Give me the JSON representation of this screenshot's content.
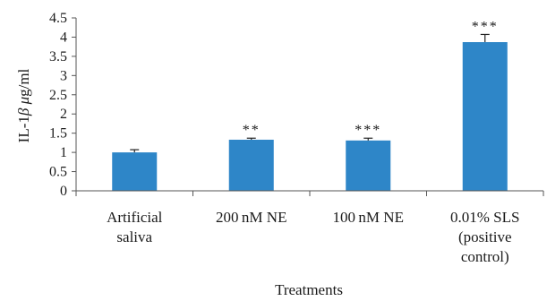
{
  "chart_data": {
    "type": "bar",
    "categories": [
      "Artificial saliva",
      "200 nM NE",
      "100 nM NE",
      "0.01% SLS (positive control)"
    ],
    "category_label_lines": [
      [
        "Artificial",
        "saliva"
      ],
      [
        "200 nM NE"
      ],
      [
        "100 nM NE"
      ],
      [
        "0.01% SLS",
        "(positive",
        "control)"
      ]
    ],
    "values": [
      1.0,
      1.33,
      1.31,
      3.87
    ],
    "errors": [
      0.07,
      0.04,
      0.06,
      0.2
    ],
    "significance": [
      "",
      "**",
      "***",
      "***"
    ],
    "ylim": [
      0,
      4.5
    ],
    "yticks": [
      "0",
      "0.5",
      "1",
      "1.5",
      "2",
      "2.5",
      "3",
      "3.5",
      "4",
      "4.5"
    ],
    "ylabel": "IL-1β μg/ml",
    "xlabel": "Treatments",
    "title": "",
    "grid": false,
    "colors": {
      "bar": "#2e86c8",
      "axis": "#555555",
      "text": "#1a1a1a"
    }
  }
}
